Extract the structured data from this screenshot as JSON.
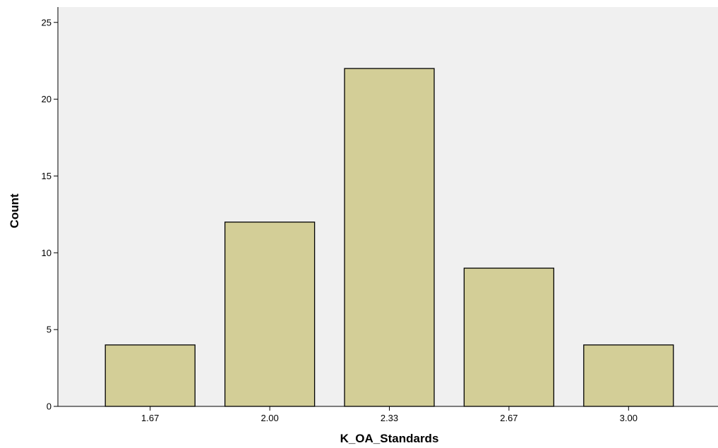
{
  "chart_data": {
    "type": "bar",
    "categories": [
      "1.67",
      "2.00",
      "2.33",
      "2.67",
      "3.00"
    ],
    "values": [
      4,
      12,
      22,
      9,
      4
    ],
    "title": "",
    "xlabel": "K_OA_Standards",
    "ylabel": "Count",
    "ylim": [
      0,
      26
    ],
    "yticks": [
      "0",
      "5",
      "10",
      "15",
      "20",
      "25"
    ],
    "grid": false,
    "legend": "none"
  },
  "colors": {
    "plot_background": "#f0f0f0",
    "bar_fill": "#d3ce97",
    "bar_stroke": "#000000",
    "axis": "#000000"
  }
}
